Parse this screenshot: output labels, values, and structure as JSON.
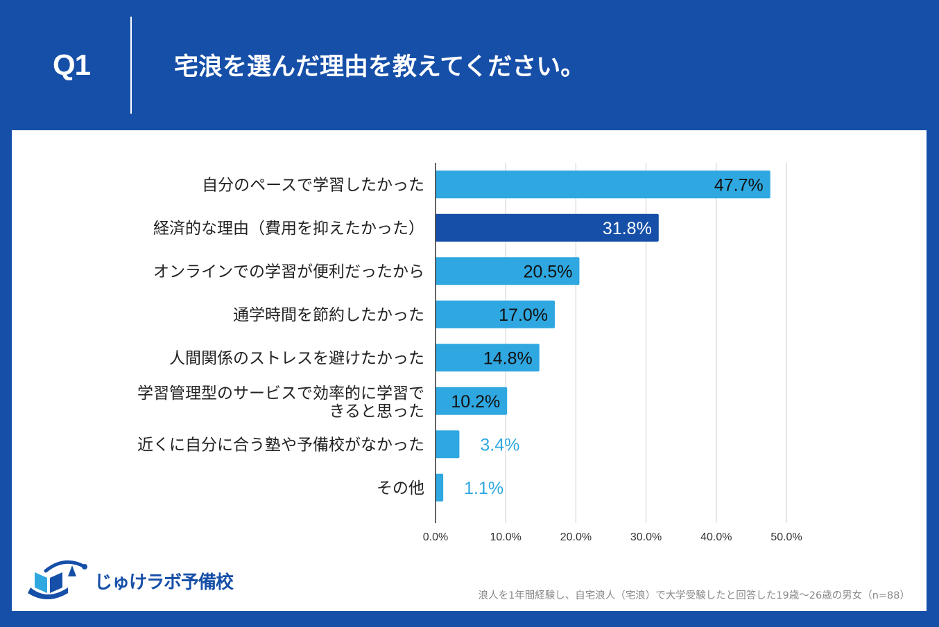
{
  "header": {
    "q_label": "Q1",
    "title": "宅浪を選んだ理由を教えてください。"
  },
  "colors": {
    "background": "#164fa8",
    "bar_light": "#2fa7e0",
    "bar_dark": "#164fa8",
    "grid": "#cccccc"
  },
  "chart_data": {
    "type": "bar",
    "orientation": "horizontal",
    "categories": [
      [
        "自分のペースで学習したかった"
      ],
      [
        "経済的な理由（費用を抑えたかった）"
      ],
      [
        "オンラインでの学習が便利だったから"
      ],
      [
        "通学時間を節約したかった"
      ],
      [
        "人間関係のストレスを避けたかった"
      ],
      [
        "学習管理型のサービスで効率的に学習で",
        "きると思った"
      ],
      [
        "近くに自分に合う塾や予備校がなかった"
      ],
      [
        "その他"
      ]
    ],
    "values": [
      47.7,
      31.8,
      20.5,
      17.0,
      14.8,
      10.2,
      3.4,
      1.1
    ],
    "value_labels": [
      "47.7%",
      "31.8%",
      "20.5%",
      "17.0%",
      "14.8%",
      "10.2%",
      "3.4%",
      "1.1%"
    ],
    "highlight_index": 1,
    "xlim": [
      0,
      50
    ],
    "xticks": [
      0,
      10,
      20,
      30,
      40,
      50
    ],
    "xtick_labels": [
      "0.0%",
      "10.0%",
      "20.0%",
      "30.0%",
      "40.0%",
      "50.0%"
    ],
    "grid": true
  },
  "logo": {
    "text": "じゅけラボ予備校",
    "icon": "open-book-logo-icon"
  },
  "footnote": "浪人を1年間経験し、自宅浪人（宅浪）で大学受験したと回答した19歳～26歳の男女（n=88）"
}
